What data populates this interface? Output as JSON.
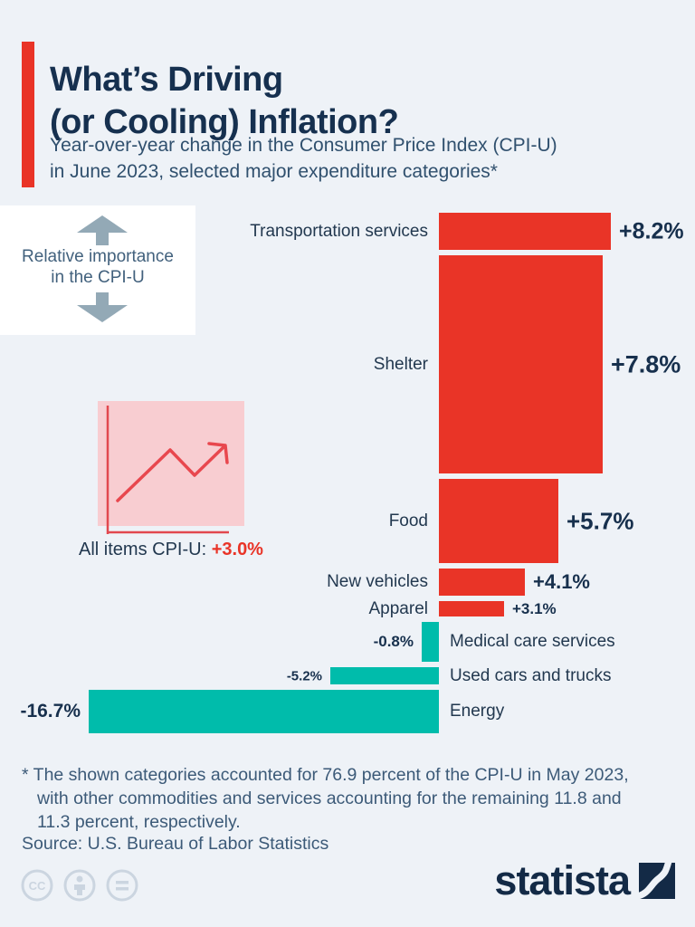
{
  "header": {
    "title": "What’s Driving\n(or Cooling) Inflation?",
    "subtitle": "Year-over-year change in the Consumer Price Index (CPI-U)\nin June 2023, selected major expenditure categories*"
  },
  "annotations": {
    "relative_importance": "Relative importance\nin the CPI-U",
    "all_items_label": "All items CPI-U:",
    "all_items_value": "+3.0%"
  },
  "chart_data": {
    "type": "bar",
    "orientation": "horizontal",
    "title": "Year-over-year change in the Consumer Price Index (CPI-U) in June 2023",
    "unit": "% year-over-year change",
    "note": "bar length = YoY % change; bar thickness = relative importance in the CPI-U; importance values estimated from bar heights",
    "categories": [
      "Transportation services",
      "Shelter",
      "Food",
      "New vehicles",
      "Apparel",
      "Medical care services",
      "Used cars and trucks",
      "Energy"
    ],
    "values": [
      8.2,
      7.8,
      5.7,
      4.1,
      3.1,
      -0.8,
      -5.2,
      -16.7
    ],
    "value_labels": [
      "+8.2%",
      "+7.8%",
      "+5.7%",
      "+4.1%",
      "+3.1%",
      "-0.8%",
      "-5.2%",
      "-16.7%"
    ],
    "relative_importance_est": [
      5.9,
      34.7,
      13.4,
      4.3,
      2.5,
      6.3,
      2.7,
      6.9
    ],
    "all_items_value": 3.0,
    "positive_color": "#e93427",
    "negative_color": "#00bcab",
    "legend_position": "none",
    "grid": false
  },
  "footnote": "* The shown categories accounted for 76.9 percent of the CPI-U in May 2023,\nwith other commodities and services accounting for the remaining 11.8 and\n11.3 percent, respectively.",
  "source": "Source: U.S. Bureau of Labor Statistics",
  "footer": {
    "logo_text": "statista",
    "cc_icons": [
      "cc",
      "person",
      "equals"
    ]
  },
  "colors": {
    "background": "#eef2f7",
    "accent_red": "#e93427",
    "bar_red": "#e93427",
    "bar_teal": "#00bcab",
    "title_navy": "#16304f",
    "subtitle_blue": "#30506e",
    "arrow_gray": "#93a9b6",
    "pink_box": "#f8cdd1",
    "pink_line": "#e2484f",
    "cc_gray": "#cbd5e0",
    "logo_navy": "#132a46"
  }
}
